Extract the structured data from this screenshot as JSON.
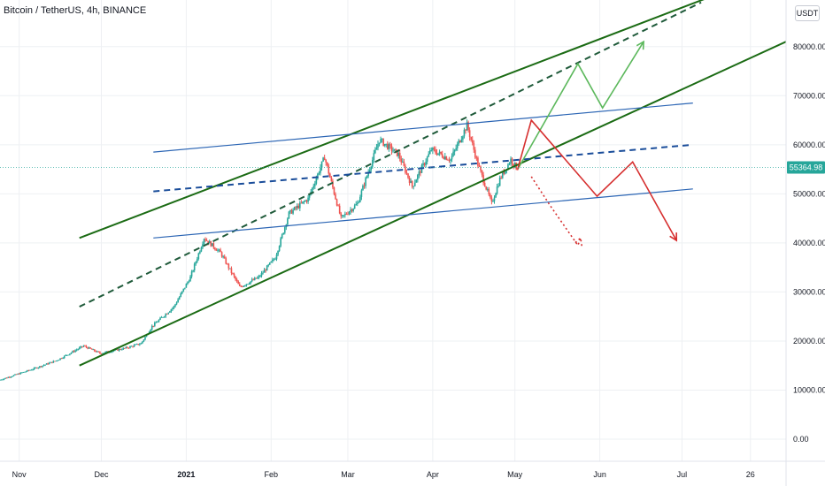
{
  "header": {
    "title": "Bitcoin / TetherUS, 4h, BINANCE",
    "currency": "USDT"
  },
  "colors": {
    "up": "#26a69a",
    "down": "#ef5350",
    "channel": "#1b6b14",
    "channel_mid": "#1f5a3a",
    "inner": "#2b65b4",
    "inner_mid": "#1a4d9a",
    "bull": "#5cb85c",
    "bear": "#d62f2f",
    "grid": "#eef0f3",
    "price_line": "#26a69a"
  },
  "chart_data": {
    "type": "candlestick",
    "symbol": "Bitcoin / TetherUS",
    "interval": "4h",
    "exchange": "BINANCE",
    "currency": "USDT",
    "last_price": 55364.98,
    "last_price_label": "55364.98",
    "y_axis": {
      "ticks": [
        0,
        10000,
        20000,
        30000,
        40000,
        50000,
        60000,
        70000,
        80000
      ],
      "tick_labels": [
        "0.00",
        "10000.00",
        "20000.00",
        "30000.00",
        "40000.00",
        "50000.00",
        "60000.00",
        "70000.00",
        "80000.00"
      ],
      "ylim": [
        -4500,
        89500
      ]
    },
    "x_axis": {
      "xlim": [
        "2020-10-25",
        "2021-08-08"
      ],
      "ticks": [
        {
          "date": "2020-11-01",
          "label": "Nov",
          "bold": false
        },
        {
          "date": "2020-12-01",
          "label": "Dec",
          "bold": false
        },
        {
          "date": "2021-01-01",
          "label": "2021",
          "bold": true
        },
        {
          "date": "2021-02-01",
          "label": "Feb",
          "bold": false
        },
        {
          "date": "2021-03-01",
          "label": "Mar",
          "bold": false
        },
        {
          "date": "2021-04-01",
          "label": "Apr",
          "bold": false
        },
        {
          "date": "2021-05-01",
          "label": "May",
          "bold": false
        },
        {
          "date": "2021-06-01",
          "label": "Jun",
          "bold": false
        },
        {
          "date": "2021-07-01",
          "label": "Jul",
          "bold": false
        },
        {
          "date": "2021-07-26",
          "label": "26",
          "bold": false
        }
      ]
    },
    "price_path": [
      [
        "2020-10-25",
        12000
      ],
      [
        "2020-11-05",
        14000
      ],
      [
        "2020-11-15",
        16000
      ],
      [
        "2020-11-25",
        19000
      ],
      [
        "2020-12-01",
        17500
      ],
      [
        "2020-12-10",
        18500
      ],
      [
        "2020-12-16",
        19500
      ],
      [
        "2020-12-20",
        23000
      ],
      [
        "2020-12-28",
        27000
      ],
      [
        "2021-01-03",
        33000
      ],
      [
        "2021-01-08",
        41000
      ],
      [
        "2021-01-14",
        38000
      ],
      [
        "2021-01-21",
        31000
      ],
      [
        "2021-01-28",
        33000
      ],
      [
        "2021-02-03",
        37000
      ],
      [
        "2021-02-08",
        46000
      ],
      [
        "2021-02-15",
        49000
      ],
      [
        "2021-02-21",
        57500
      ],
      [
        "2021-02-27",
        45000
      ],
      [
        "2021-03-05",
        48000
      ],
      [
        "2021-03-13",
        61000
      ],
      [
        "2021-03-20",
        58000
      ],
      [
        "2021-03-25",
        51500
      ],
      [
        "2021-04-01",
        59000
      ],
      [
        "2021-04-08",
        57000
      ],
      [
        "2021-04-14",
        64000
      ],
      [
        "2021-04-18",
        56000
      ],
      [
        "2021-04-23",
        48000
      ],
      [
        "2021-04-26",
        53000
      ],
      [
        "2021-04-30",
        57000
      ],
      [
        "2021-05-02",
        55365
      ]
    ],
    "lines": [
      {
        "name": "channel-upper",
        "style": "solid",
        "color": "channel",
        "points": [
          [
            "2020-11-23",
            41000
          ],
          [
            "2021-07-20",
            92000
          ]
        ]
      },
      {
        "name": "channel-middle",
        "style": "dashed",
        "color": "channel_mid",
        "points": [
          [
            "2020-11-23",
            27000
          ],
          [
            "2021-07-08",
            89000
          ]
        ]
      },
      {
        "name": "channel-lower",
        "style": "solid",
        "color": "channel",
        "points": [
          [
            "2020-11-23",
            15000
          ],
          [
            "2021-08-08",
            81000
          ]
        ]
      },
      {
        "name": "inner-upper",
        "style": "solid",
        "color": "inner",
        "points": [
          [
            "2020-12-20",
            58500
          ],
          [
            "2021-07-05",
            68500
          ]
        ]
      },
      {
        "name": "inner-middle",
        "style": "dashed",
        "color": "inner_mid",
        "points": [
          [
            "2020-12-20",
            50500
          ],
          [
            "2021-07-05",
            60000
          ]
        ]
      },
      {
        "name": "inner-lower",
        "style": "solid",
        "color": "inner",
        "points": [
          [
            "2020-12-20",
            41000
          ],
          [
            "2021-07-05",
            51000
          ]
        ]
      }
    ],
    "scenarios": [
      {
        "name": "bull-path",
        "color": "bull",
        "style": "solid",
        "points": [
          [
            "2021-05-02",
            55000
          ],
          [
            "2021-05-24",
            76500
          ],
          [
            "2021-06-02",
            67500
          ],
          [
            "2021-06-17",
            81000
          ]
        ]
      },
      {
        "name": "bear-path",
        "color": "bear",
        "style": "solid",
        "points": [
          [
            "2021-05-02",
            55000
          ],
          [
            "2021-05-07",
            65000
          ],
          [
            "2021-05-31",
            49500
          ],
          [
            "2021-06-13",
            56500
          ],
          [
            "2021-06-29",
            40500
          ]
        ]
      },
      {
        "name": "bear-alt-path",
        "color": "bear",
        "style": "dotted",
        "points": [
          [
            "2021-05-07",
            53500
          ],
          [
            "2021-05-14",
            47500
          ],
          [
            "2021-05-24",
            39500
          ],
          [
            "2021-05-25",
            41000
          ]
        ]
      }
    ]
  }
}
